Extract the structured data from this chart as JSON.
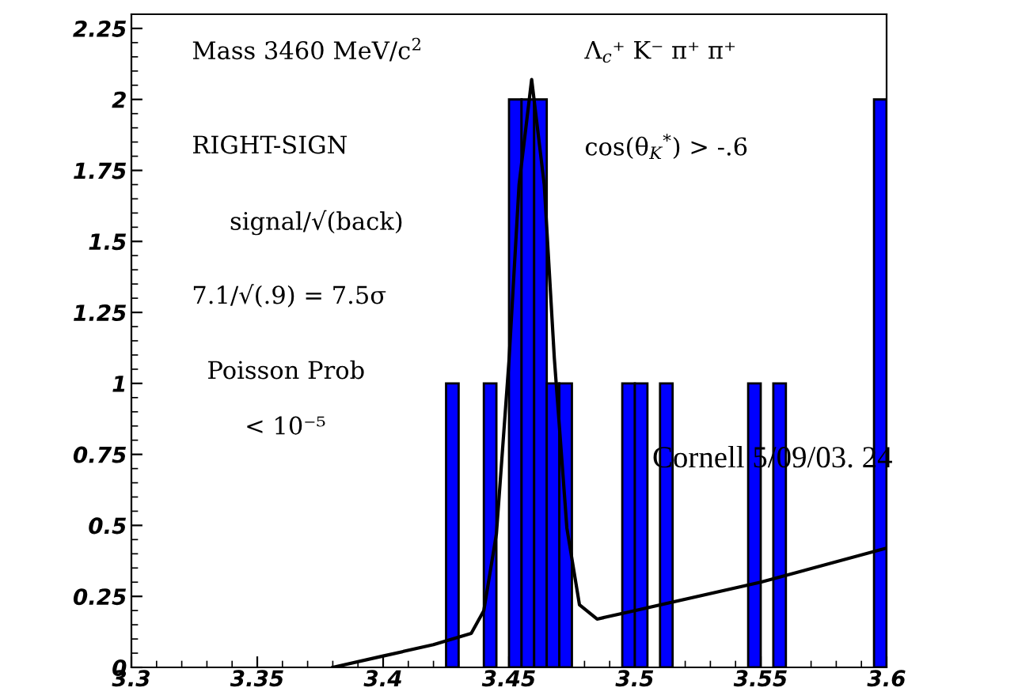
{
  "chart_data": {
    "type": "histogram",
    "bins": [
      3.3,
      3.305,
      3.31,
      3.315,
      3.32,
      3.325,
      3.33,
      3.335,
      3.34,
      3.345,
      3.35,
      3.355,
      3.36,
      3.365,
      3.37,
      3.375,
      3.38,
      3.385,
      3.39,
      3.395,
      3.4,
      3.405,
      3.41,
      3.415,
      3.42,
      3.425,
      3.43,
      3.435,
      3.44,
      3.445,
      3.45,
      3.455,
      3.46,
      3.465,
      3.47,
      3.475,
      3.48,
      3.485,
      3.49,
      3.495,
      3.5,
      3.505,
      3.51,
      3.515,
      3.52,
      3.525,
      3.53,
      3.535,
      3.54,
      3.545,
      3.55,
      3.555,
      3.56,
      3.565,
      3.57,
      3.575,
      3.58,
      3.585,
      3.59,
      3.595,
      3.6
    ],
    "values": [
      0,
      0,
      0,
      0,
      0,
      0,
      0,
      0,
      0,
      0,
      0,
      0,
      0,
      0,
      0,
      0,
      0,
      0,
      0,
      0,
      0,
      0,
      0,
      0,
      0,
      1,
      0,
      0,
      1,
      0,
      2,
      2,
      2,
      1,
      1,
      0,
      0,
      0,
      0,
      1,
      1,
      0,
      1,
      0,
      0,
      0,
      0,
      0,
      0,
      1,
      0,
      1,
      0,
      0,
      0,
      0,
      0,
      0,
      0,
      2
    ],
    "color": "#0000ff",
    "series": [
      {
        "type": "line",
        "color": "#000000",
        "x": [
          3.38,
          3.4,
          3.42,
          3.435,
          3.44,
          3.445,
          3.45,
          3.454,
          3.459,
          3.464,
          3.468,
          3.473,
          3.478,
          3.485,
          3.5,
          3.55,
          3.6
        ],
        "values": [
          0,
          0.04,
          0.08,
          0.12,
          0.2,
          0.47,
          1.08,
          1.7,
          2.07,
          1.7,
          1.09,
          0.49,
          0.22,
          0.17,
          0.2,
          0.3,
          0.42
        ]
      }
    ],
    "xlim": [
      3.3,
      3.6
    ],
    "ylim": [
      0,
      2.3
    ],
    "xticks": [
      3.3,
      3.35,
      3.4,
      3.45,
      3.5,
      3.55,
      3.6
    ],
    "yticks": [
      0,
      0.25,
      0.5,
      0.75,
      1,
      1.25,
      1.5,
      1.75,
      2,
      2.25
    ],
    "grid": false,
    "annotations": [
      "Mass 3460 MeV/c$^{2}$",
      "Λ$_{c}$⁺ K⁻ π⁺ π⁺",
      "RIGHT-SIGN",
      "cos(θ$_{K}$$^{*}$) > -.6",
      "signal/√(back)",
      "7.1/√(.9) = 7.5σ",
      "Poisson Prob",
      "< 10⁻⁵",
      "Cornell 5/09/03. 24"
    ]
  }
}
